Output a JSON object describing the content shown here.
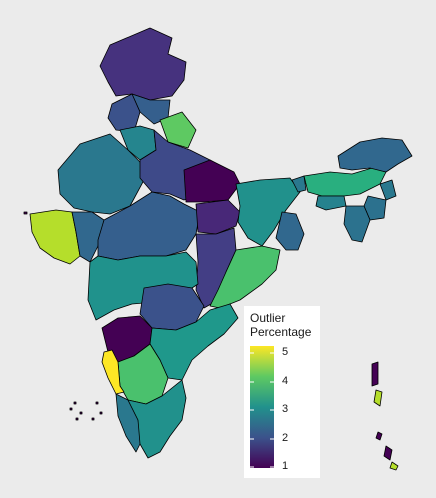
{
  "chart_data": {
    "type": "choropleth",
    "region": "India",
    "legend": {
      "title_line1": "Outlier",
      "title_line2": "Percentage",
      "colormap": "viridis",
      "range": [
        1,
        5
      ],
      "ticks": [
        "5",
        "4",
        "3",
        "2",
        "1"
      ],
      "placement": "bottom-right inside plot"
    },
    "colors": {
      "background": "#ebebeb",
      "border": "#000000",
      "v1": "#440154",
      "v2": "#31688e",
      "v3": "#21918c",
      "v4": "#5ec962",
      "v5": "#fde725"
    },
    "regions_by_level": {
      "darkest_purple": [
        "northern Himalayan region",
        "north-central region",
        "south-western Deccan region"
      ],
      "bright_yellow": [
        "western peninsular coastal strip"
      ],
      "yellow_green": [
        "western peninsula (Saurashtra area)"
      ]
    }
  }
}
